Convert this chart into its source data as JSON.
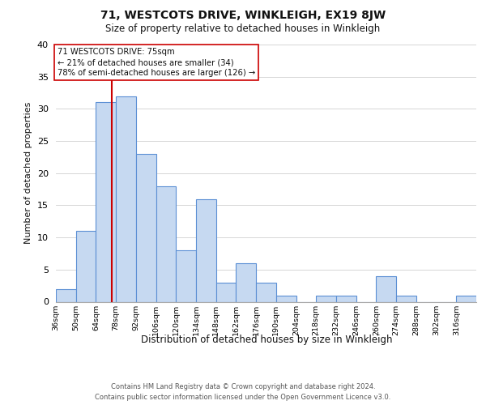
{
  "title": "71, WESTCOTS DRIVE, WINKLEIGH, EX19 8JW",
  "subtitle": "Size of property relative to detached houses in Winkleigh",
  "xlabel": "Distribution of detached houses by size in Winkleigh",
  "ylabel": "Number of detached properties",
  "bin_labels": [
    "36sqm",
    "50sqm",
    "64sqm",
    "78sqm",
    "92sqm",
    "106sqm",
    "120sqm",
    "134sqm",
    "148sqm",
    "162sqm",
    "176sqm",
    "190sqm",
    "204sqm",
    "218sqm",
    "232sqm",
    "246sqm",
    "260sqm",
    "274sqm",
    "288sqm",
    "302sqm",
    "316sqm"
  ],
  "bin_edges": [
    36,
    50,
    64,
    78,
    92,
    106,
    120,
    134,
    148,
    162,
    176,
    190,
    204,
    218,
    232,
    246,
    260,
    274,
    288,
    302,
    316,
    330
  ],
  "counts": [
    2,
    11,
    31,
    32,
    23,
    18,
    8,
    16,
    3,
    6,
    3,
    1,
    0,
    1,
    1,
    0,
    4,
    1,
    0,
    0,
    1
  ],
  "bar_color": "#c6d9f1",
  "bar_edge_color": "#5b8fd4",
  "vline_x": 75,
  "vline_color": "#cc0000",
  "annotation_line1": "71 WESTCOTS DRIVE: 75sqm",
  "annotation_line2": "← 21% of detached houses are smaller (34)",
  "annotation_line3": "78% of semi-detached houses are larger (126) →",
  "annotation_box_edge": "#cc0000",
  "ylim": [
    0,
    40
  ],
  "yticks": [
    0,
    5,
    10,
    15,
    20,
    25,
    30,
    35,
    40
  ],
  "footer_line1": "Contains HM Land Registry data © Crown copyright and database right 2024.",
  "footer_line2": "Contains public sector information licensed under the Open Government Licence v3.0.",
  "background_color": "#ffffff",
  "grid_color": "#d0d0d0"
}
